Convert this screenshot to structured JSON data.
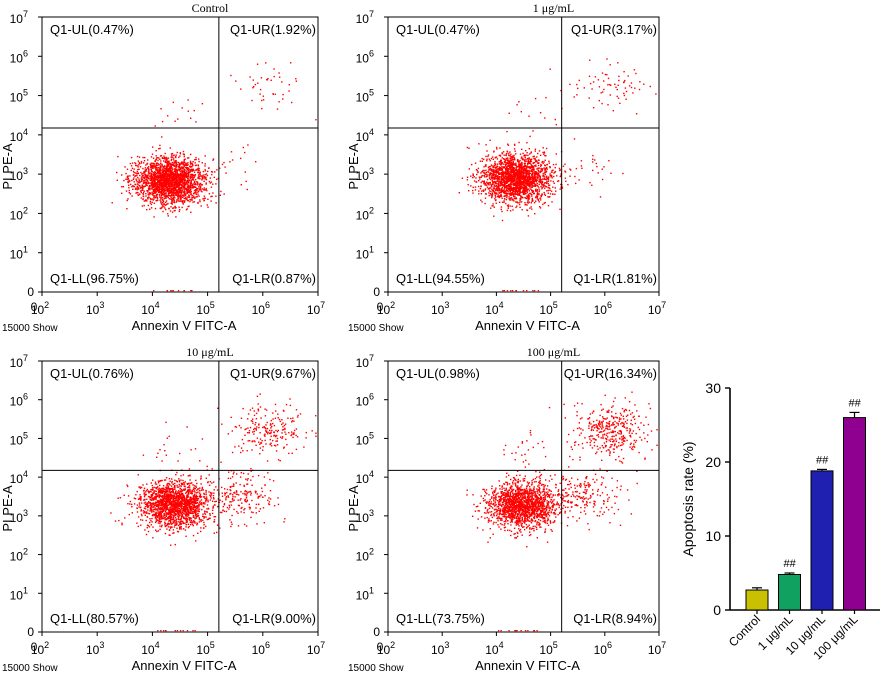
{
  "chart_data": [
    {
      "type": "scatter",
      "title": "Control",
      "xlabel": "Annexin V FITC-A",
      "ylabel": "PI PE-A",
      "event_count_label": "15000 Show",
      "x_scale": "log",
      "y_scale": "log",
      "x_ticks": [
        "0",
        "10",
        "10",
        "10",
        "10",
        "10",
        "10"
      ],
      "x_tick_exponents": [
        "",
        "2",
        "3",
        "4",
        "5",
        "6",
        "7"
      ],
      "x_tick_values": [
        0,
        100,
        1000,
        10000,
        100000,
        1000000,
        10000000
      ],
      "y_ticks": [
        "0",
        "10",
        "10",
        "10",
        "10",
        "10",
        "10",
        "10"
      ],
      "y_tick_exponents": [
        "",
        "1",
        "2",
        "3",
        "4",
        "5",
        "6",
        "7"
      ],
      "y_tick_values": [
        0,
        10,
        100,
        1000,
        10000,
        100000,
        1000000,
        10000000
      ],
      "gate_x": 160000,
      "gate_y": 15000,
      "quadrants": {
        "UL": "Q1-UL(0.47%)",
        "UR": "Q1-UR(1.92%)",
        "LL": "Q1-LL(96.75%)",
        "LR": "Q1-LR(0.87%)"
      },
      "quadrant_percent": {
        "UL": 0.47,
        "UR": 1.92,
        "LL": 96.75,
        "LR": 0.87
      },
      "main_cluster": {
        "x": 20000,
        "y": 700
      },
      "point_color": "#ff0000"
    },
    {
      "type": "scatter",
      "title": "1 μg/mL",
      "xlabel": "Annexin V FITC-A",
      "ylabel": "PI PE-A",
      "event_count_label": "15000 Show",
      "x_scale": "log",
      "y_scale": "log",
      "x_ticks": [
        "0",
        "10",
        "10",
        "10",
        "10",
        "10",
        "10"
      ],
      "x_tick_exponents": [
        "",
        "2",
        "3",
        "4",
        "5",
        "6",
        "7"
      ],
      "x_tick_values": [
        0,
        100,
        1000,
        10000,
        100000,
        1000000,
        10000000
      ],
      "y_ticks": [
        "0",
        "10",
        "10",
        "10",
        "10",
        "10",
        "10",
        "10"
      ],
      "y_tick_exponents": [
        "",
        "1",
        "2",
        "3",
        "4",
        "5",
        "6",
        "7"
      ],
      "y_tick_values": [
        0,
        10,
        100,
        1000,
        10000,
        100000,
        1000000,
        10000000
      ],
      "gate_x": 160000,
      "gate_y": 15000,
      "quadrants": {
        "UL": "Q1-UL(0.47%)",
        "UR": "Q1-UR(3.17%)",
        "LL": "Q1-LL(94.55%)",
        "LR": "Q1-LR(1.81%)"
      },
      "quadrant_percent": {
        "UL": 0.47,
        "UR": 3.17,
        "LL": 94.55,
        "LR": 1.81
      },
      "main_cluster": {
        "x": 22000,
        "y": 800
      },
      "point_color": "#ff0000"
    },
    {
      "type": "scatter",
      "title": "10 μg/mL",
      "xlabel": "Annexin V FITC-A",
      "ylabel": "PI PE-A",
      "event_count_label": "15000 Show",
      "x_scale": "log",
      "y_scale": "log",
      "x_ticks": [
        "0",
        "10",
        "10",
        "10",
        "10",
        "10",
        "10"
      ],
      "x_tick_exponents": [
        "",
        "2",
        "3",
        "4",
        "5",
        "6",
        "7"
      ],
      "x_tick_values": [
        0,
        100,
        1000,
        10000,
        100000,
        1000000,
        10000000
      ],
      "y_ticks": [
        "0",
        "10",
        "10",
        "10",
        "10",
        "10",
        "10",
        "10"
      ],
      "y_tick_exponents": [
        "",
        "1",
        "2",
        "3",
        "4",
        "5",
        "6",
        "7"
      ],
      "y_tick_values": [
        0,
        10,
        100,
        1000,
        10000,
        100000,
        1000000,
        10000000
      ],
      "gate_x": 160000,
      "gate_y": 15000,
      "quadrants": {
        "UL": "Q1-UL(0.76%)",
        "UR": "Q1-UR(9.67%)",
        "LL": "Q1-LL(80.57%)",
        "LR": "Q1-LR(9.00%)"
      },
      "quadrant_percent": {
        "UL": 0.76,
        "UR": 9.67,
        "LL": 80.57,
        "LR": 9.0
      },
      "main_cluster": {
        "x": 25000,
        "y": 2000
      },
      "point_color": "#ff0000"
    },
    {
      "type": "scatter",
      "title": "100 μg/mL",
      "xlabel": "Annexin V FITC-A",
      "ylabel": "PI PE-A",
      "event_count_label": "15000 Show",
      "x_scale": "log",
      "y_scale": "log",
      "x_ticks": [
        "0",
        "10",
        "10",
        "10",
        "10",
        "10",
        "10"
      ],
      "x_tick_exponents": [
        "",
        "2",
        "3",
        "4",
        "5",
        "6",
        "7"
      ],
      "x_tick_values": [
        0,
        100,
        1000,
        10000,
        100000,
        1000000,
        10000000
      ],
      "y_ticks": [
        "0",
        "10",
        "10",
        "10",
        "10",
        "10",
        "10",
        "10"
      ],
      "y_tick_exponents": [
        "",
        "1",
        "2",
        "3",
        "4",
        "5",
        "6",
        "7"
      ],
      "y_tick_values": [
        0,
        10,
        100,
        1000,
        10000,
        100000,
        1000000,
        10000000
      ],
      "gate_x": 160000,
      "gate_y": 15000,
      "quadrants": {
        "UL": "Q1-UL(0.98%)",
        "UR": "Q1-UR(16.34%)",
        "LL": "Q1-LL(73.75%)",
        "LR": "Q1-LR(8.94%)"
      },
      "quadrant_percent": {
        "UL": 0.98,
        "UR": 16.34,
        "LL": 73.75,
        "LR": 8.94
      },
      "main_cluster": {
        "x": 30000,
        "y": 2000
      },
      "point_color": "#ff0000"
    },
    {
      "type": "bar",
      "title": "",
      "xlabel": "",
      "ylabel": "Apoptosis rate (%)",
      "categories": [
        "Control",
        "1 μg/mL",
        "10 μg/mL",
        "100 μg/mL"
      ],
      "values": [
        2.7,
        4.8,
        18.8,
        26.0
      ],
      "errors": [
        0.3,
        0.2,
        0.2,
        0.7
      ],
      "annotations": [
        "",
        "##",
        "##",
        "##"
      ],
      "colors": [
        "#c8c000",
        "#10a060",
        "#2020b0",
        "#900090"
      ],
      "ylim": [
        0,
        30
      ],
      "yticks": [
        "0",
        "10",
        "20",
        "30"
      ],
      "ytick_values": [
        0,
        10,
        20,
        30
      ]
    }
  ]
}
